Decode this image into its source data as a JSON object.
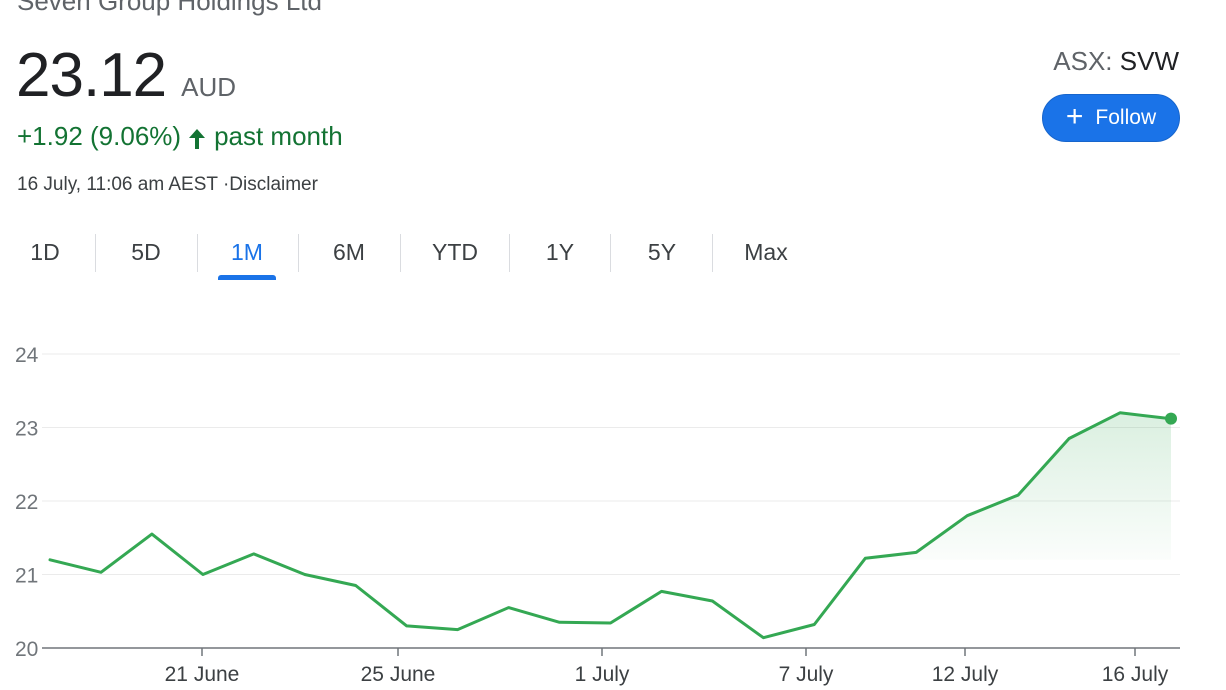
{
  "company": "Seven Group Holdings Ltd",
  "price": "23.12",
  "currency": "AUD",
  "change_text": "+1.92 (9.06%)",
  "change_period": "past month",
  "timestamp": "16 July, 11:06 am AEST ·Disclaimer",
  "ticker": {
    "exchange": "ASX: ",
    "symbol": "SVW"
  },
  "follow_label": "Follow",
  "tabs": [
    {
      "label": "1D"
    },
    {
      "label": "5D"
    },
    {
      "label": "1M",
      "active": true
    },
    {
      "label": "6M"
    },
    {
      "label": "YTD"
    },
    {
      "label": "1Y"
    },
    {
      "label": "5Y"
    },
    {
      "label": "Max"
    }
  ],
  "colors": {
    "accent": "#1a73e8",
    "positive": "#137333",
    "line": "#34a853"
  },
  "chart_data": {
    "type": "line",
    "ylim": [
      20,
      24
    ],
    "yticks": [
      "24",
      "23",
      "22",
      "21",
      "20"
    ],
    "xticks": [
      "21 June",
      "25 June",
      "1 July",
      "7 July",
      "12 July",
      "16 July"
    ],
    "series": [
      {
        "values": [
          21.2,
          21.03,
          21.55,
          21.0,
          21.28,
          21.0,
          20.85,
          20.3,
          20.25,
          20.55,
          20.35,
          20.34,
          20.77,
          20.64,
          20.14,
          20.32,
          21.22,
          21.3,
          21.8,
          22.08,
          22.85,
          23.2,
          23.12
        ]
      }
    ]
  }
}
